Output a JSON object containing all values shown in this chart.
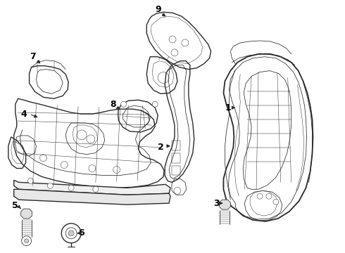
{
  "bg_color": "#ffffff",
  "line_color": "#2a2a2a",
  "label_color": "#000000",
  "figsize": [
    4.9,
    3.6
  ],
  "dpi": 100,
  "lw_main": 1.0,
  "lw_detail": 0.55,
  "lw_thin": 0.35
}
